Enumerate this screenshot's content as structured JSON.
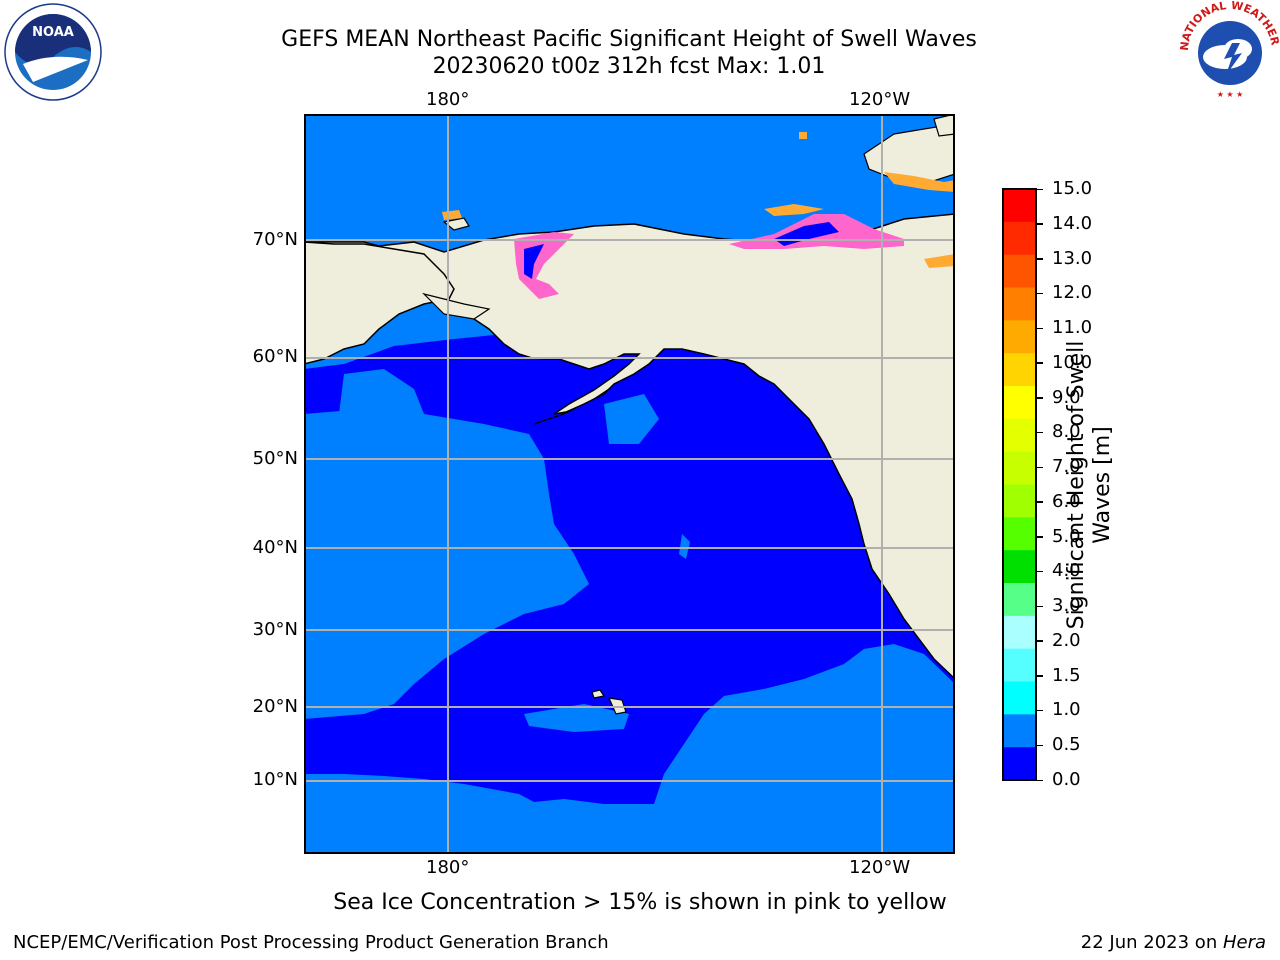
{
  "title_line1": "GEFS MEAN Northeast Pacific Significant Height of Swell Waves",
  "title_line2": "20230620 t00z 312h fcst   Max: 1.01",
  "map": {
    "top_lon_labels": [
      "180°",
      "120°W"
    ],
    "bottom_lon_labels": [
      "180°",
      "120°W"
    ],
    "lat_labels": [
      "70°N",
      "60°N",
      "50°N",
      "40°N",
      "30°N",
      "20°N",
      "10°N"
    ],
    "gridlines": true,
    "colors": {
      "ocean_low": "#0000ff",
      "ocean_mid": "#0080ff",
      "land": "#efeedc",
      "ice_pink": "#ff66cc",
      "ice_orange": "#ffaa33",
      "grid": "#b0b0b0"
    }
  },
  "colorbar": {
    "label_line1": "Significant Height of Swell",
    "label_line2": "Waves [m]",
    "ticks": [
      "15.0",
      "14.0",
      "13.0",
      "12.0",
      "11.0",
      "10.0",
      "9.0",
      "8.0",
      "7.0",
      "6.0",
      "5.0",
      "4.0",
      "3.0",
      "2.0",
      "1.5",
      "1.0",
      "0.5",
      "0.0"
    ],
    "colors_top_to_bottom": [
      "#ff0000",
      "#ff2a00",
      "#ff5500",
      "#ff8000",
      "#ffaa00",
      "#ffd400",
      "#ffff00",
      "#e4ff00",
      "#c8ff00",
      "#a0ff00",
      "#55ff00",
      "#00e000",
      "#55ff88",
      "#aaffff",
      "#55ffff",
      "#00ffff",
      "#0080ff",
      "#0000ff"
    ]
  },
  "ice_note": "Sea Ice Concentration > 15% is shown in pink to yellow",
  "footer_left": "NCEP/EMC/Verification Post Processing Product Generation Branch",
  "footer_date": "22 Jun 2023 on ",
  "footer_machine": "Hera",
  "logos": {
    "left": "NOAA",
    "right": "NATIONAL WEATHER SERVICE"
  }
}
